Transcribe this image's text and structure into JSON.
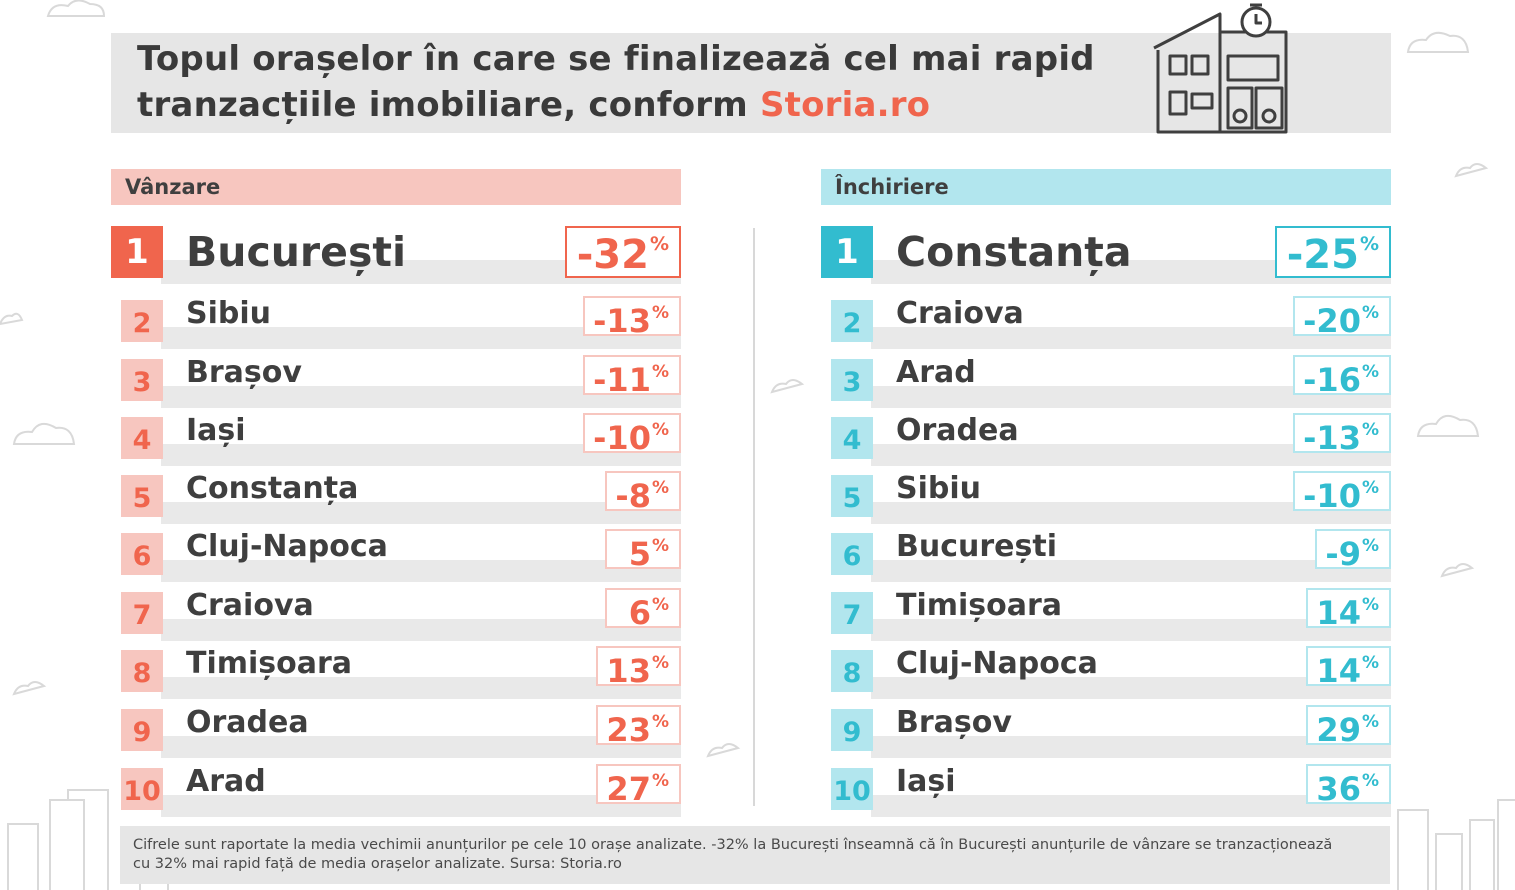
{
  "header": {
    "title_main": "Topul orașelor în care se finalizează cel mai rapid tranzacțiile imobiliare, conform ",
    "title_brand": "Storia.ro"
  },
  "colors": {
    "sale_accent": "#f0654d",
    "sale_light": "#f7c6bf",
    "rent_accent": "#32bccf",
    "rent_light": "#b2e6ee"
  },
  "icons": [
    "house-stopwatch-icon",
    "cloud-icon",
    "city-skyline"
  ],
  "sale": {
    "label": "Vânzare",
    "rows": [
      {
        "rank": "1",
        "city": "București",
        "value": "-32",
        "unit": "%"
      },
      {
        "rank": "2",
        "city": "Sibiu",
        "value": "-13",
        "unit": "%"
      },
      {
        "rank": "3",
        "city": "Brașov",
        "value": "-11",
        "unit": "%"
      },
      {
        "rank": "4",
        "city": "Iași",
        "value": "-10",
        "unit": "%"
      },
      {
        "rank": "5",
        "city": "Constanța",
        "value": "-8",
        "unit": "%"
      },
      {
        "rank": "6",
        "city": "Cluj-Napoca",
        "value": "5",
        "unit": "%"
      },
      {
        "rank": "7",
        "city": "Craiova",
        "value": "6",
        "unit": "%"
      },
      {
        "rank": "8",
        "city": "Timișoara",
        "value": "13",
        "unit": "%"
      },
      {
        "rank": "9",
        "city": "Oradea",
        "value": "23",
        "unit": "%"
      },
      {
        "rank": "10",
        "city": "Arad",
        "value": "27",
        "unit": "%"
      }
    ]
  },
  "rent": {
    "label": "Închiriere",
    "rows": [
      {
        "rank": "1",
        "city": "Constanța",
        "value": "-25",
        "unit": "%"
      },
      {
        "rank": "2",
        "city": "Craiova",
        "value": "-20",
        "unit": "%"
      },
      {
        "rank": "3",
        "city": "Arad",
        "value": "-16",
        "unit": "%"
      },
      {
        "rank": "4",
        "city": "Oradea",
        "value": "-13",
        "unit": "%"
      },
      {
        "rank": "5",
        "city": "Sibiu",
        "value": "-10",
        "unit": "%"
      },
      {
        "rank": "6",
        "city": "București",
        "value": "-9",
        "unit": "%"
      },
      {
        "rank": "7",
        "city": "Timișoara",
        "value": "14",
        "unit": "%"
      },
      {
        "rank": "8",
        "city": "Cluj-Napoca",
        "value": "14",
        "unit": "%"
      },
      {
        "rank": "9",
        "city": "Brașov",
        "value": "29",
        "unit": "%"
      },
      {
        "rank": "10",
        "city": "Iași",
        "value": "36",
        "unit": "%"
      }
    ]
  },
  "footnote": "Cifrele sunt raportate la media vechimii anunțurilor pe cele 10 orașe analizate. -32% la București înseamnă că în București anunțurile de vânzare se tranzacționează cu 32% mai rapid față de media orașelor analizate. Sursa: Storia.ro"
}
